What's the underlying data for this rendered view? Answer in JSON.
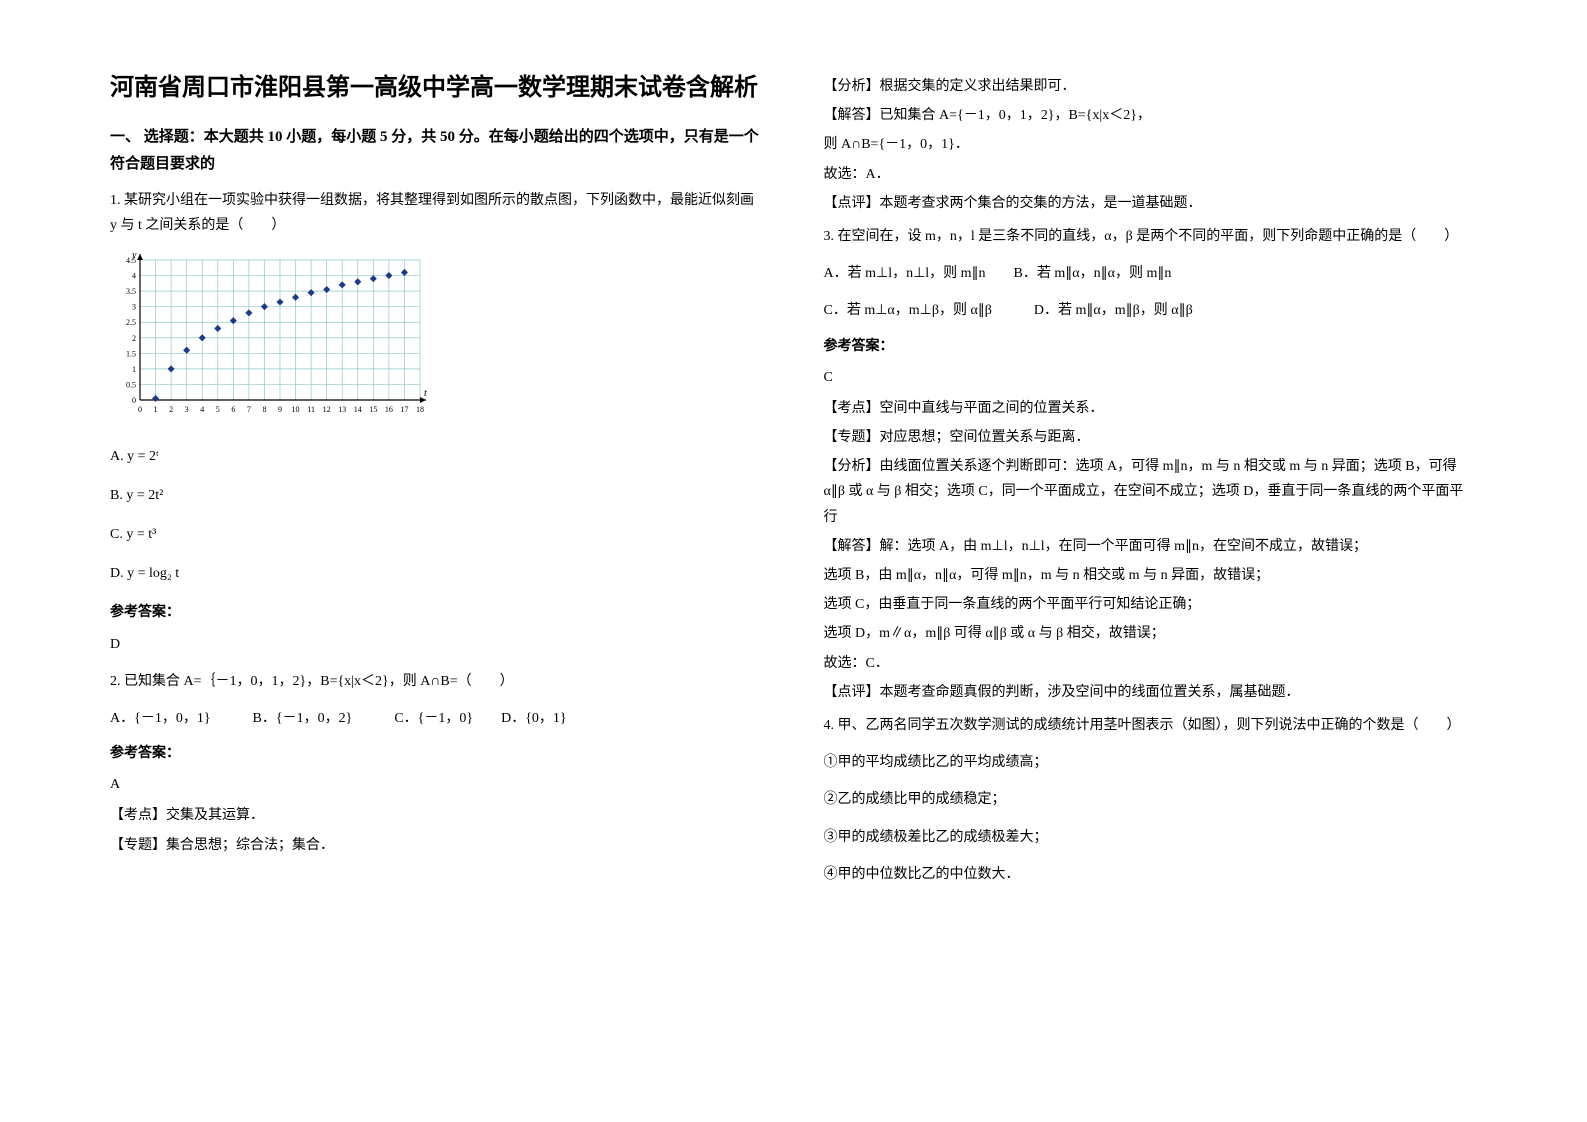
{
  "title": "河南省周口市淮阳县第一高级中学高一数学理期末试卷含解析",
  "section1_head": "一、 选择题：本大题共 10 小题，每小题 5 分，共 50 分。在每小题给出的四个选项中，只有是一个符合题目要求的",
  "q1": {
    "text": "1. 某研究小组在一项实验中获得一组数据，将其整理得到如图所示的散点图，下列函数中，最能近似刻画 y 与 t 之间关系的是（　　）",
    "optA": "A. y = 2ᵗ",
    "optB": "B. y = 2t²",
    "optC": "C. y = t³",
    "optD": "D. y = log₂ t",
    "answer_label": "参考答案：",
    "answer": "D"
  },
  "chart": {
    "x_max": 18,
    "y_max": 4.5,
    "y_step": 0.5,
    "grid_color": "#8fc7c7",
    "axis_color": "#000000",
    "point_color": "#1a3a8a",
    "bg": "#ffffff",
    "points": [
      [
        1,
        0.05
      ],
      [
        2,
        1.0
      ],
      [
        3,
        1.6
      ],
      [
        4,
        2.0
      ],
      [
        5,
        2.3
      ],
      [
        6,
        2.55
      ],
      [
        7,
        2.8
      ],
      [
        8,
        3.0
      ],
      [
        9,
        3.15
      ],
      [
        10,
        3.3
      ],
      [
        11,
        3.45
      ],
      [
        12,
        3.55
      ],
      [
        13,
        3.7
      ],
      [
        14,
        3.8
      ],
      [
        15,
        3.9
      ],
      [
        16,
        4.0
      ],
      [
        17,
        4.1
      ]
    ],
    "x_labels": [
      "0",
      "1",
      "2",
      "3",
      "4",
      "5",
      "6",
      "7",
      "8",
      "9",
      "10",
      "11",
      "12",
      "13",
      "14",
      "15",
      "16",
      "17",
      "18"
    ],
    "y_labels": [
      "0",
      "0.5",
      "1",
      "1.5",
      "2",
      "2.5",
      "3",
      "3.5",
      "4",
      "4.5"
    ]
  },
  "q2": {
    "text": "2. 已知集合 A=｛－1，0，1，2}，B={x|x＜2}，则 A∩B=（　　）",
    "options": "A．{－1，0，1}　　　B．{－1，0，2}　　　C．{－1，0}　　D．{0，1}",
    "answer_label": "参考答案：",
    "answer": "A",
    "kaodian": "【考点】交集及其运算．",
    "zhuanti": "【专题】集合思想；综合法；集合．",
    "fenxi": "【分析】根据交集的定义求出结果即可．",
    "jieda": "【解答】已知集合 A={－1，0，1，2}，B={x|x＜2}，",
    "jieda2": "则 A∩B={－1，0，1}．",
    "jieda3": "故选：A．",
    "dianping": "【点评】本题考查求两个集合的交集的方法，是一道基础题．"
  },
  "q3": {
    "text": "3. 在空间在，设 m，n，l 是三条不同的直线，α，β 是两个不同的平面，则下列命题中正确的是（　　）",
    "lineA": "A．若 m⊥l，n⊥l，则 m∥n　　B．若 m∥α，n∥α，则 m∥n",
    "lineC": "C．若 m⊥α，m⊥β，则 α∥β　　　D．若 m∥α，m∥β，则 α∥β",
    "answer_label": "参考答案：",
    "answer": "C",
    "kaodian": "【考点】空间中直线与平面之间的位置关系．",
    "zhuanti": "【专题】对应思想；空间位置关系与距离．",
    "fenxi": "【分析】由线面位置关系逐个判断即可：选项 A，可得 m∥n，m 与 n 相交或 m 与 n 异面；选项 B，可得 α∥β 或 α 与 β 相交；选项 C，同一个平面成立，在空间不成立；选项 D，垂直于同一条直线的两个平面平行",
    "jieda1": "【解答】解：选项 A，由 m⊥l，n⊥l，在同一个平面可得 m∥n，在空间不成立，故错误；",
    "jieda2": "选项 B，由 m∥α，n∥α，可得 m∥n，m 与 n 相交或 m 与 n 异面，故错误；",
    "jieda3": "选项 C，由垂直于同一条直线的两个平面平行可知结论正确；",
    "jieda4": "选项 D，m∥α，m∥β 可得 α∥β 或 α 与 β 相交，故错误；",
    "jieda5": "故选：C．",
    "dianping": "【点评】本题考查命题真假的判断，涉及空间中的线面位置关系，属基础题．"
  },
  "q4": {
    "text": "4. 甲、乙两名同学五次数学测试的成绩统计用茎叶图表示（如图），则下列说法中正确的个数是（　　）",
    "s1": "①甲的平均成绩比乙的平均成绩高；",
    "s2": "②乙的成绩比甲的成绩稳定；",
    "s3": "③甲的成绩极差比乙的成绩极差大；",
    "s4": "④甲的中位数比乙的中位数大．"
  }
}
